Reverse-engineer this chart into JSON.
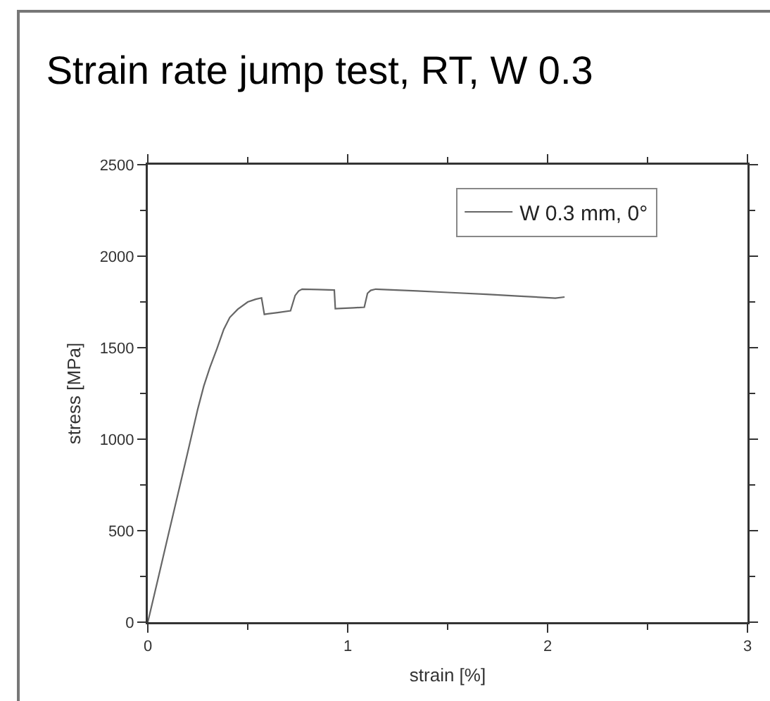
{
  "chart_data": {
    "type": "line",
    "title": "Strain rate jump test, RT, W 0.3",
    "xlabel": "strain [%]",
    "ylabel": "stress [MPa]",
    "series": [
      {
        "name": "W 0.3 mm, 0°",
        "color": "#666666",
        "x": [
          0,
          0.05,
          0.1,
          0.15,
          0.2,
          0.25,
          0.28,
          0.31,
          0.346,
          0.38,
          0.41,
          0.45,
          0.5,
          0.54,
          0.569,
          0.583,
          0.6,
          0.65,
          0.714,
          0.737,
          0.755,
          0.772,
          0.85,
          0.933,
          0.938,
          0.97,
          1.03,
          1.083,
          1.099,
          1.115,
          1.14,
          1.2,
          1.348,
          1.5,
          1.693,
          1.85,
          2.039,
          2.085
        ],
        "values": [
          0,
          232,
          465,
          697,
          930,
          1165,
          1290,
          1390,
          1495,
          1600,
          1665,
          1710,
          1750,
          1765,
          1772,
          1682,
          1685,
          1692,
          1702,
          1785,
          1810,
          1820,
          1818,
          1815,
          1713,
          1715,
          1718,
          1721,
          1797,
          1813,
          1820,
          1817,
          1810,
          1802,
          1792,
          1782,
          1771,
          1777
        ]
      }
    ],
    "xlim": [
      0,
      3
    ],
    "xticks": [
      0,
      {
        "value": 0.5,
        "label": null
      },
      1,
      {
        "value": 1.5,
        "label": null
      },
      2,
      {
        "value": 2.5,
        "label": null
      },
      3
    ],
    "ylim": [
      0,
      2500
    ],
    "yticks": [
      0,
      {
        "value": 250,
        "label": null
      },
      500,
      {
        "value": 750,
        "label": null
      },
      1000,
      {
        "value": 1250,
        "label": null
      },
      1500,
      {
        "value": 1750,
        "label": null
      },
      2000,
      {
        "value": 2250,
        "label": null
      },
      2500
    ],
    "grid": false,
    "legend": "top right",
    "marker": "none",
    "line_style": "solid"
  }
}
